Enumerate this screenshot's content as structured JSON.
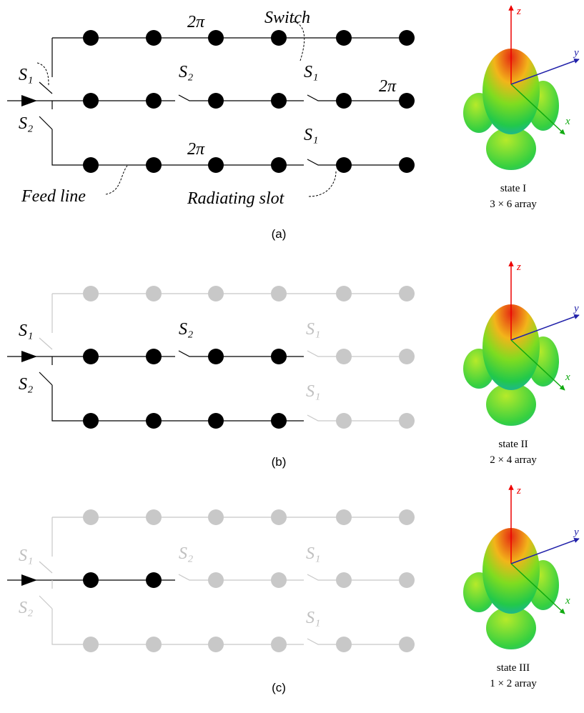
{
  "panels": [
    {
      "labels": [
        {
          "text": "2π"
        },
        {
          "text": "Switch"
        },
        {
          "text": "S₁"
        },
        {
          "text": "S₂"
        },
        {
          "text": "S₂"
        },
        {
          "text": "S₁"
        },
        {
          "text": "2π"
        },
        {
          "text": "S₁"
        },
        {
          "text": "2π"
        },
        {
          "text": "Feed line"
        },
        {
          "text": "Radiating slot"
        }
      ],
      "state": "state I",
      "array": "3 × 6 array",
      "caption": "(a)",
      "axes": {
        "z": "z",
        "y": "y",
        "x": "x"
      }
    },
    {
      "labels": [
        {
          "text": "S₁"
        },
        {
          "text": "S₂"
        },
        {
          "text": "S₂"
        },
        {
          "text": "S₁"
        },
        {
          "text": "S₁"
        }
      ],
      "state": "state II",
      "array": "2 × 4 array",
      "caption": "(b)",
      "axes": {
        "z": "z",
        "y": "y",
        "x": "x"
      }
    },
    {
      "labels": [
        {
          "text": "S₁"
        },
        {
          "text": "S₂"
        },
        {
          "text": "S₂"
        },
        {
          "text": "S₁"
        },
        {
          "text": "S₁"
        }
      ],
      "state": "state III",
      "array": "1 × 2 array",
      "caption": "(c)",
      "axes": {
        "z": "z",
        "y": "y",
        "x": "x"
      }
    }
  ]
}
